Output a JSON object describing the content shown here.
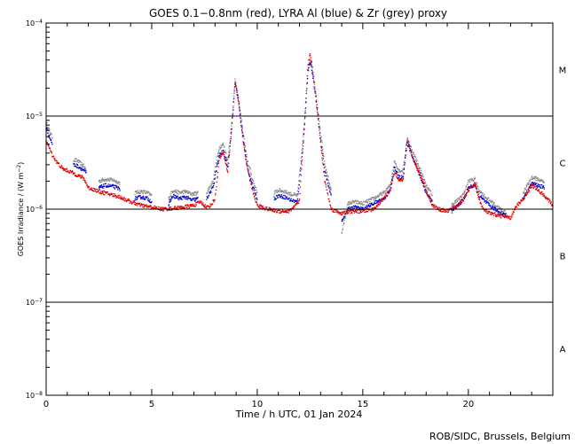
{
  "chart_data": {
    "type": "scatter",
    "title": "GOES 0.1−0.8nm (red), LYRA Al (blue) & Zr (grey) proxy",
    "xlabel": "Time / h UTC, 01 Jan 2024",
    "ylabel_main": "GOES Irradiance / (W m",
    "ylabel_exp": "−2",
    "ylabel_end": ")",
    "credit": "ROB/SIDC, Brussels, Belgium",
    "xlim": [
      0,
      24
    ],
    "ylim": [
      1e-08,
      0.0001
    ],
    "yscale": "log",
    "x_ticks": [
      0,
      5,
      10,
      15,
      20
    ],
    "y_ticks": [
      {
        "value": 1e-08,
        "base": "10",
        "exp": "−8"
      },
      {
        "value": 1e-07,
        "base": "10",
        "exp": "−7"
      },
      {
        "value": 1e-06,
        "base": "10",
        "exp": "−6"
      },
      {
        "value": 1e-05,
        "base": "10",
        "exp": "−5"
      },
      {
        "value": 0.0001,
        "base": "10",
        "exp": "−4"
      }
    ],
    "flare_thresholds": [
      1e-07,
      1e-06,
      1e-05
    ],
    "flare_classes": [
      {
        "label": "A",
        "y": 3.16e-08
      },
      {
        "label": "B",
        "y": 3.16e-07
      },
      {
        "label": "C",
        "y": 3.16e-06
      },
      {
        "label": "M",
        "y": 3.16e-05
      }
    ],
    "colors": {
      "goes": "#e00000",
      "al": "#0000cc",
      "zr": "#888888",
      "axis": "#000000"
    },
    "series": [
      {
        "name": "GOES 0.1−0.8nm",
        "color": "#e00000",
        "start": 0,
        "end": 24,
        "points": [
          [
            0,
            5.5e-06
          ],
          [
            0.25,
            4e-06
          ],
          [
            0.5,
            3.2e-06
          ],
          [
            0.8,
            2.7e-06
          ],
          [
            1.0,
            2.6e-06
          ],
          [
            1.2,
            2.5e-06
          ],
          [
            1.5,
            2.3e-06
          ],
          [
            1.7,
            2.2e-06
          ],
          [
            1.8,
            2.1e-06
          ],
          [
            2.0,
            1.7e-06
          ],
          [
            2.5,
            1.55e-06
          ],
          [
            3.0,
            1.45e-06
          ],
          [
            3.5,
            1.35e-06
          ],
          [
            4.0,
            1.2e-06
          ],
          [
            4.5,
            1.1e-06
          ],
          [
            5.0,
            1.05e-06
          ],
          [
            5.5,
            1e-06
          ],
          [
            6.0,
            1.02e-06
          ],
          [
            6.5,
            1.05e-06
          ],
          [
            7.0,
            1.1e-06
          ],
          [
            7.3,
            1.2e-06
          ],
          [
            7.6,
            1.05e-06
          ],
          [
            7.8,
            1.1e-06
          ],
          [
            8.0,
            1.3e-06
          ],
          [
            8.2,
            3.5e-06
          ],
          [
            8.4,
            4e-06
          ],
          [
            8.6,
            2.5e-06
          ],
          [
            8.8,
            8e-06
          ],
          [
            8.95,
            2.4e-05
          ],
          [
            9.1,
            1.5e-05
          ],
          [
            9.3,
            6e-06
          ],
          [
            9.5,
            3e-06
          ],
          [
            9.8,
            1.5e-06
          ],
          [
            10.0,
            1.1e-06
          ],
          [
            10.5,
            1e-06
          ],
          [
            11.0,
            9.5e-07
          ],
          [
            11.5,
            9.5e-07
          ],
          [
            12.0,
            1.2e-06
          ],
          [
            12.2,
            6e-06
          ],
          [
            12.4,
            3.5e-05
          ],
          [
            12.5,
            4.7e-05
          ],
          [
            12.6,
            3.5e-05
          ],
          [
            12.8,
            1.5e-05
          ],
          [
            13.0,
            5e-06
          ],
          [
            13.2,
            2e-06
          ],
          [
            13.5,
            1e-06
          ],
          [
            14.0,
            9e-07
          ],
          [
            14.5,
            9.5e-07
          ],
          [
            15.0,
            9.5e-07
          ],
          [
            15.5,
            1e-06
          ],
          [
            16.0,
            1.3e-06
          ],
          [
            16.3,
            1.6e-06
          ],
          [
            16.5,
            2.5e-06
          ],
          [
            16.7,
            2e-06
          ],
          [
            16.9,
            2e-06
          ],
          [
            17.1,
            5.8e-06
          ],
          [
            17.3,
            4e-06
          ],
          [
            17.5,
            3e-06
          ],
          [
            17.8,
            2.2e-06
          ],
          [
            18.0,
            1.6e-06
          ],
          [
            18.3,
            1.1e-06
          ],
          [
            18.6,
            1e-06
          ],
          [
            19.0,
            9.5e-07
          ],
          [
            19.5,
            1.1e-06
          ],
          [
            19.8,
            1.3e-06
          ],
          [
            20.0,
            1.6e-06
          ],
          [
            20.3,
            1.9e-06
          ],
          [
            20.5,
            1.3e-06
          ],
          [
            20.7,
            1e-06
          ],
          [
            21.0,
            9e-07
          ],
          [
            21.5,
            8.5e-07
          ],
          [
            22.0,
            8e-07
          ],
          [
            22.3,
            1.1e-06
          ],
          [
            22.6,
            1.3e-06
          ],
          [
            23.0,
            1.8e-06
          ],
          [
            23.3,
            1.6e-06
          ],
          [
            23.6,
            1.4e-06
          ],
          [
            24.0,
            1.1e-06
          ]
        ]
      },
      {
        "name": "LYRA Al proxy",
        "color": "#0000cc",
        "segments": [
          [
            [
              0,
              7.5e-06
            ],
            [
              0.1,
              6.5e-06
            ],
            [
              0.3,
              5e-06
            ]
          ],
          [
            [
              1.3,
              3e-06
            ],
            [
              1.5,
              2.9e-06
            ],
            [
              1.7,
              2.7e-06
            ],
            [
              1.8,
              2.6e-06
            ],
            [
              1.9,
              2.4e-06
            ]
          ],
          [
            [
              2.5,
              1.7e-06
            ],
            [
              2.8,
              1.8e-06
            ],
            [
              3.2,
              1.75e-06
            ],
            [
              3.5,
              1.65e-06
            ]
          ],
          [
            [
              4.2,
              1.3e-06
            ],
            [
              4.5,
              1.35e-06
            ],
            [
              4.8,
              1.3e-06
            ],
            [
              5.0,
              1.2e-06
            ]
          ],
          [
            [
              5.8,
              1.1e-06
            ],
            [
              6.0,
              1.4e-06
            ],
            [
              6.3,
              1.3e-06
            ],
            [
              6.6,
              1.35e-06
            ],
            [
              6.9,
              1.25e-06
            ],
            [
              7.2,
              1.3e-06
            ]
          ],
          [
            [
              7.6,
              1.3e-06
            ],
            [
              7.9,
              1.7e-06
            ],
            [
              8.2,
              3.8e-06
            ],
            [
              8.4,
              4.2e-06
            ],
            [
              8.6,
              2.8e-06
            ],
            [
              8.8,
              8e-06
            ],
            [
              8.95,
              2.3e-05
            ],
            [
              9.1,
              1.5e-05
            ],
            [
              9.3,
              6.5e-06
            ],
            [
              9.5,
              3e-06
            ],
            [
              9.8,
              1.7e-06
            ],
            [
              10.0,
              1.3e-06
            ]
          ],
          [
            [
              10.8,
              1.3e-06
            ],
            [
              11.0,
              1.4e-06
            ],
            [
              11.3,
              1.35e-06
            ],
            [
              11.6,
              1.25e-06
            ],
            [
              11.9,
              1.2e-06
            ],
            [
              12.0,
              2e-06
            ],
            [
              12.2,
              6e-06
            ],
            [
              12.4,
              3e-05
            ],
            [
              12.5,
              3.8e-05
            ],
            [
              12.6,
              3e-05
            ],
            [
              12.8,
              1.4e-05
            ],
            [
              13.0,
              5.5e-06
            ],
            [
              13.2,
              2.5e-06
            ],
            [
              13.5,
              1.4e-06
            ]
          ],
          [
            [
              14.0,
              7.5e-07
            ],
            [
              14.3,
              1e-06
            ],
            [
              14.6,
              1.05e-06
            ],
            [
              15.0,
              1e-06
            ],
            [
              15.5,
              1.15e-06
            ],
            [
              16.0,
              1.3e-06
            ],
            [
              16.3,
              1.6e-06
            ],
            [
              16.5,
              2.8e-06
            ],
            [
              16.7,
              2.2e-06
            ],
            [
              16.9,
              2.2e-06
            ],
            [
              17.1,
              5.2e-06
            ],
            [
              17.3,
              4e-06
            ],
            [
              17.5,
              3e-06
            ],
            [
              17.8,
              2e-06
            ],
            [
              18.0,
              1.5e-06
            ],
            [
              18.3,
              1.2e-06
            ]
          ],
          [
            [
              19.2,
              9.5e-07
            ],
            [
              19.5,
              1.1e-06
            ],
            [
              19.8,
              1.3e-06
            ],
            [
              20.0,
              1.7e-06
            ],
            [
              20.3,
              1.8e-06
            ],
            [
              20.5,
              1.4e-06
            ],
            [
              20.8,
              1.2e-06
            ],
            [
              21.0,
              1.1e-06
            ],
            [
              21.4,
              9.5e-07
            ],
            [
              21.8,
              8.5e-07
            ]
          ],
          [
            [
              22.6,
              1.3e-06
            ],
            [
              23.0,
              1.9e-06
            ],
            [
              23.3,
              1.8e-06
            ],
            [
              23.6,
              1.7e-06
            ]
          ]
        ]
      },
      {
        "name": "LYRA Zr proxy",
        "color": "#888888",
        "segments": [
          [
            [
              0,
              8.5e-06
            ],
            [
              0.1,
              7.5e-06
            ],
            [
              0.3,
              5.8e-06
            ]
          ],
          [
            [
              1.3,
              3.4e-06
            ],
            [
              1.5,
              3.3e-06
            ],
            [
              1.7,
              3e-06
            ],
            [
              1.8,
              2.9e-06
            ],
            [
              1.9,
              2.6e-06
            ]
          ],
          [
            [
              2.5,
              2e-06
            ],
            [
              2.8,
              2.1e-06
            ],
            [
              3.2,
              2.05e-06
            ],
            [
              3.5,
              1.9e-06
            ]
          ],
          [
            [
              4.2,
              1.5e-06
            ],
            [
              4.5,
              1.55e-06
            ],
            [
              4.8,
              1.5e-06
            ],
            [
              5.0,
              1.4e-06
            ]
          ],
          [
            [
              5.8,
              1.3e-06
            ],
            [
              6.0,
              1.6e-06
            ],
            [
              6.3,
              1.5e-06
            ],
            [
              6.6,
              1.55e-06
            ],
            [
              6.9,
              1.45e-06
            ],
            [
              7.2,
              1.5e-06
            ]
          ],
          [
            [
              7.6,
              1.5e-06
            ],
            [
              7.9,
              2e-06
            ],
            [
              8.2,
              4.6e-06
            ],
            [
              8.4,
              5e-06
            ],
            [
              8.6,
              3.3e-06
            ],
            [
              8.8,
              9e-06
            ],
            [
              8.95,
              2.4e-05
            ],
            [
              9.1,
              1.6e-05
            ],
            [
              9.3,
              7.5e-06
            ],
            [
              9.5,
              3.6e-06
            ],
            [
              9.8,
              2e-06
            ],
            [
              10.0,
              1.5e-06
            ]
          ],
          [
            [
              10.8,
              1.5e-06
            ],
            [
              11.0,
              1.6e-06
            ],
            [
              11.3,
              1.55e-06
            ],
            [
              11.6,
              1.45e-06
            ],
            [
              11.9,
              1.4e-06
            ],
            [
              12.0,
              2.3e-06
            ],
            [
              12.2,
              7e-06
            ],
            [
              12.4,
              3.2e-05
            ],
            [
              12.5,
              4.2e-05
            ],
            [
              12.6,
              3.3e-05
            ],
            [
              12.8,
              1.6e-05
            ],
            [
              13.0,
              6.5e-06
            ],
            [
              13.2,
              3e-06
            ],
            [
              13.5,
              1.6e-06
            ]
          ],
          [
            [
              14.0,
              5.5e-07
            ],
            [
              14.3,
              1.15e-06
            ],
            [
              14.6,
              1.2e-06
            ],
            [
              15.0,
              1.15e-06
            ],
            [
              15.5,
              1.3e-06
            ],
            [
              16.0,
              1.5e-06
            ],
            [
              16.3,
              1.8e-06
            ],
            [
              16.5,
              3.3e-06
            ],
            [
              16.7,
              2.6e-06
            ],
            [
              16.9,
              2.6e-06
            ],
            [
              17.1,
              5.5e-06
            ],
            [
              17.3,
              4.5e-06
            ],
            [
              17.5,
              3.5e-06
            ],
            [
              17.8,
              2.4e-06
            ],
            [
              18.0,
              1.8e-06
            ],
            [
              18.3,
              1.4e-06
            ]
          ],
          [
            [
              19.2,
              1.1e-06
            ],
            [
              19.5,
              1.25e-06
            ],
            [
              19.8,
              1.5e-06
            ],
            [
              20.0,
              2e-06
            ],
            [
              20.3,
              2.1e-06
            ],
            [
              20.5,
              1.6e-06
            ],
            [
              20.8,
              1.35e-06
            ],
            [
              21.0,
              1.25e-06
            ],
            [
              21.4,
              1.05e-06
            ],
            [
              21.8,
              9e-07
            ]
          ],
          [
            [
              22.6,
              1.5e-06
            ],
            [
              23.0,
              2.2e-06
            ],
            [
              23.3,
              2.1e-06
            ],
            [
              23.6,
              1.95e-06
            ]
          ]
        ]
      }
    ]
  }
}
